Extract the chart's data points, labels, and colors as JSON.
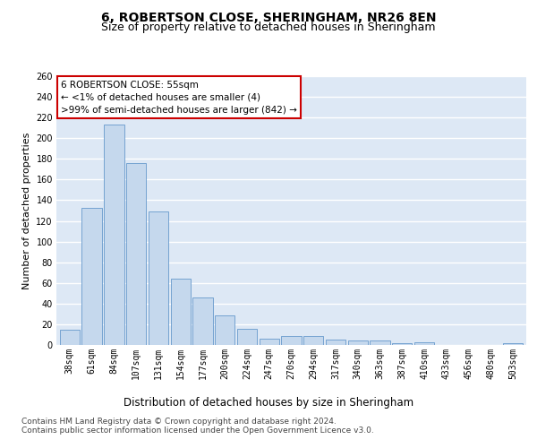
{
  "title": "6, ROBERTSON CLOSE, SHERINGHAM, NR26 8EN",
  "subtitle": "Size of property relative to detached houses in Sheringham",
  "xlabel": "Distribution of detached houses by size in Sheringham",
  "ylabel": "Number of detached properties",
  "categories": [
    "38sqm",
    "61sqm",
    "84sqm",
    "107sqm",
    "131sqm",
    "154sqm",
    "177sqm",
    "200sqm",
    "224sqm",
    "247sqm",
    "270sqm",
    "294sqm",
    "317sqm",
    "340sqm",
    "363sqm",
    "387sqm",
    "410sqm",
    "433sqm",
    "456sqm",
    "480sqm",
    "503sqm"
  ],
  "values": [
    15,
    133,
    213,
    176,
    129,
    64,
    46,
    29,
    16,
    6,
    9,
    9,
    5,
    4,
    4,
    2,
    3,
    0,
    0,
    0,
    2
  ],
  "bar_color": "#c5d8ed",
  "bar_edge_color": "#6699cc",
  "annotation_line1": "6 ROBERTSON CLOSE: 55sqm",
  "annotation_line2": "← <1% of detached houses are smaller (4)",
  "annotation_line3": ">99% of semi-detached houses are larger (842) →",
  "annotation_box_color": "#ffffff",
  "annotation_box_edge_color": "#cc0000",
  "ylim": [
    0,
    260
  ],
  "yticks": [
    0,
    20,
    40,
    60,
    80,
    100,
    120,
    140,
    160,
    180,
    200,
    220,
    240,
    260
  ],
  "background_color": "#dde8f5",
  "footer_line1": "Contains HM Land Registry data © Crown copyright and database right 2024.",
  "footer_line2": "Contains public sector information licensed under the Open Government Licence v3.0.",
  "title_fontsize": 10,
  "subtitle_fontsize": 9,
  "xlabel_fontsize": 8.5,
  "ylabel_fontsize": 8,
  "tick_fontsize": 7,
  "footer_fontsize": 6.5
}
